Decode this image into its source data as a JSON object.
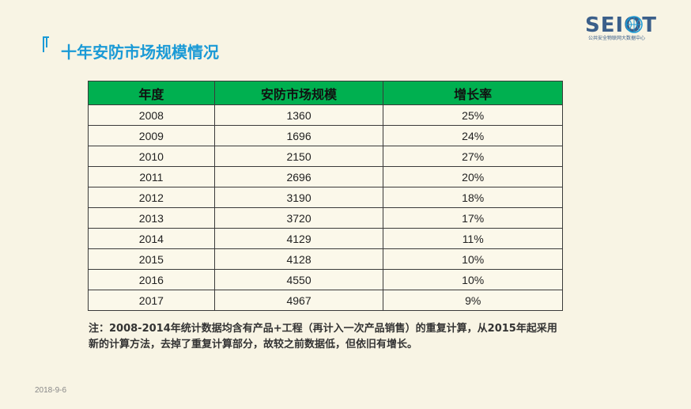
{
  "slide": {
    "title": "十年安防市场规模情况",
    "logo_text": "SEIOT",
    "logo_subtitle": "公共安全物联网大数据中心",
    "date": "2018-9-6",
    "note": "注：2008-2014年统计数据均含有产品+工程（再计入一次产品销售）的重复计算，从2015年起采用新的计算方法，去掉了重复计算部分，故较之前数据低，但依旧有增长。"
  },
  "table": {
    "headers": [
      "年度",
      "安防市场规模",
      "增长率"
    ],
    "rows": [
      [
        "2008",
        "1360",
        "25%"
      ],
      [
        "2009",
        "1696",
        "24%"
      ],
      [
        "2010",
        "2150",
        "27%"
      ],
      [
        "2011",
        "2696",
        "20%"
      ],
      [
        "2012",
        "3190",
        "18%"
      ],
      [
        "2013",
        "3720",
        "17%"
      ],
      [
        "2014",
        "4129",
        "11%"
      ],
      [
        "2015",
        "4128",
        "10%"
      ],
      [
        "2016",
        "4550",
        "10%"
      ],
      [
        "2017",
        "4967",
        "9%"
      ]
    ]
  },
  "colors": {
    "title": "#1a9ad6",
    "header_bg": "#00b050",
    "background": "#f8f4e4",
    "logo": "#3b5f8a"
  }
}
